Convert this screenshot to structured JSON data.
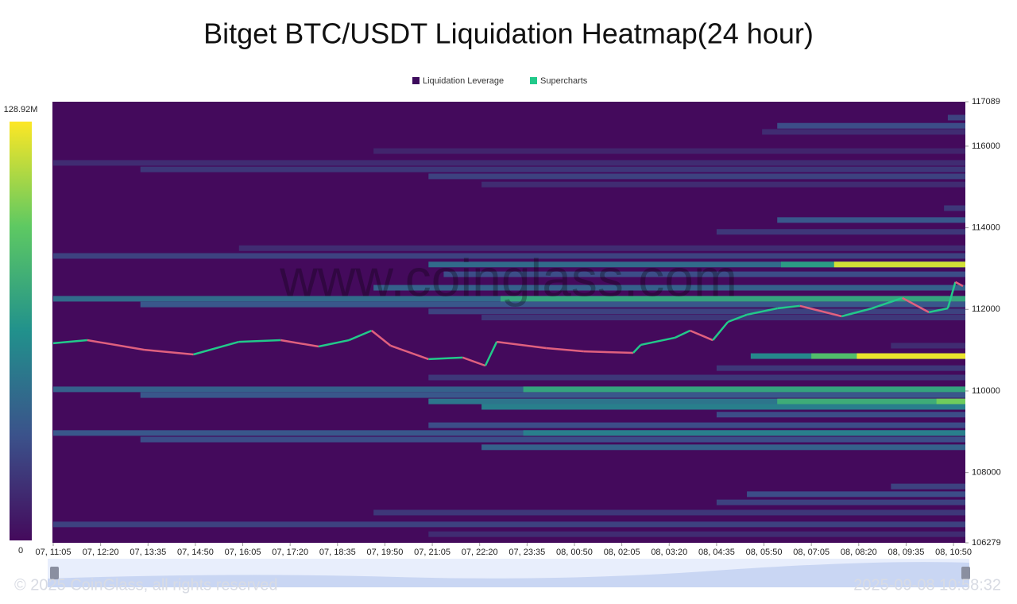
{
  "chart_data": {
    "type": "heatmap",
    "title": "Bitget BTC/USDT Liquidation Heatmap(24 hour)",
    "watermark": "www.coinglass.com",
    "copyright": "© 2025 CoinGlass, all rights reserved",
    "timestamp": "2025-09-08 10:58:32",
    "xlim": [
      0,
      24
    ],
    "xticks": [
      {
        "value": 0,
        "label": "07, 11:05"
      },
      {
        "value": 1.25,
        "label": "07, 12:20"
      },
      {
        "value": 2.5,
        "label": "07, 13:35"
      },
      {
        "value": 3.75,
        "label": "07, 14:50"
      },
      {
        "value": 5,
        "label": "07, 16:05"
      },
      {
        "value": 6.25,
        "label": "07, 17:20"
      },
      {
        "value": 7.5,
        "label": "07, 18:35"
      },
      {
        "value": 8.75,
        "label": "07, 19:50"
      },
      {
        "value": 10,
        "label": "07, 21:05"
      },
      {
        "value": 11.25,
        "label": "07, 22:20"
      },
      {
        "value": 12.5,
        "label": "07, 23:35"
      },
      {
        "value": 13.75,
        "label": "08, 00:50"
      },
      {
        "value": 15,
        "label": "08, 02:05"
      },
      {
        "value": 16.25,
        "label": "08, 03:20"
      },
      {
        "value": 17.5,
        "label": "08, 04:35"
      },
      {
        "value": 18.75,
        "label": "08, 05:50"
      },
      {
        "value": 20,
        "label": "08, 07:05"
      },
      {
        "value": 21.25,
        "label": "08, 08:20"
      },
      {
        "value": 22.5,
        "label": "08, 09:35"
      },
      {
        "value": 23.75,
        "label": "08, 10:50"
      }
    ],
    "ylim": [
      106279,
      117089
    ],
    "yticks": [
      106279,
      108000,
      110000,
      112000,
      114000,
      116000,
      117089
    ],
    "colorbar": {
      "lim": [
        0,
        128920000
      ],
      "ticks": [
        0,
        {
          "value": 128920000,
          "label": "128.92M"
        }
      ],
      "colors": [
        "#440a5c",
        "#3b528b",
        "#21918c",
        "#5ec962",
        "#fde725"
      ]
    },
    "series": [
      {
        "name": "Liquidation Leverage",
        "color": "#3d0b5c",
        "bands": [
          {
            "y": 116700,
            "x": 23.6,
            "value": 25000000
          },
          {
            "y": 116500,
            "x": 19.1,
            "value": 30000000
          },
          {
            "y": 116350,
            "x": 18.7,
            "value": 15000000
          },
          {
            "y": 115880,
            "x": 8.45,
            "value": 12000000
          },
          {
            "y": 115590,
            "x": 0,
            "value": 15000000
          },
          {
            "y": 115430,
            "x": 2.3,
            "value": 20000000
          },
          {
            "y": 115260,
            "x": 9.9,
            "value": 25000000
          },
          {
            "y": 115060,
            "x": 11.3,
            "value": 15000000
          },
          {
            "y": 114480,
            "x": 23.5,
            "value": 20000000
          },
          {
            "y": 114190,
            "x": 19.1,
            "value": 35000000
          },
          {
            "y": 113900,
            "x": 17.5,
            "value": 20000000
          },
          {
            "y": 113500,
            "x": 4.9,
            "value": 15000000
          },
          {
            "y": 113310,
            "x": 0,
            "value": 25000000
          },
          {
            "y": 113100,
            "x": 9.9,
            "value": 45000000
          },
          {
            "y": 113100,
            "x": 19.2,
            "value": 70000000
          },
          {
            "y": 113100,
            "x": 20.6,
            "value": 120000000
          },
          {
            "y": 112860,
            "x": 10.3,
            "value": 30000000
          },
          {
            "y": 112530,
            "x": 8.45,
            "value": 40000000
          },
          {
            "y": 112260,
            "x": 0,
            "value": 45000000
          },
          {
            "y": 112260,
            "x": 11.8,
            "value": 75000000
          },
          {
            "y": 112120,
            "x": 2.3,
            "value": 35000000
          },
          {
            "y": 111950,
            "x": 9.9,
            "value": 25000000
          },
          {
            "y": 111800,
            "x": 11.3,
            "value": 20000000
          },
          {
            "y": 111110,
            "x": 22.1,
            "value": 15000000
          },
          {
            "y": 110855,
            "x": 18.4,
            "value": 60000000
          },
          {
            "y": 110855,
            "x": 20,
            "value": 90000000
          },
          {
            "y": 110855,
            "x": 21.2,
            "value": 125000000
          },
          {
            "y": 110560,
            "x": 17.5,
            "value": 20000000
          },
          {
            "y": 110330,
            "x": 9.9,
            "value": 20000000
          },
          {
            "y": 110040,
            "x": 0,
            "value": 40000000
          },
          {
            "y": 110040,
            "x": 12.4,
            "value": 75000000
          },
          {
            "y": 109900,
            "x": 2.3,
            "value": 35000000
          },
          {
            "y": 109745,
            "x": 9.9,
            "value": 50000000
          },
          {
            "y": 109745,
            "x": 19.1,
            "value": 80000000
          },
          {
            "y": 109745,
            "x": 23.3,
            "value": 100000000
          },
          {
            "y": 109610,
            "x": 11.3,
            "value": 55000000
          },
          {
            "y": 109420,
            "x": 17.5,
            "value": 30000000
          },
          {
            "y": 109160,
            "x": 9.9,
            "value": 30000000
          },
          {
            "y": 108970,
            "x": 0,
            "value": 35000000
          },
          {
            "y": 108970,
            "x": 12.4,
            "value": 55000000
          },
          {
            "y": 108810,
            "x": 2.3,
            "value": 30000000
          },
          {
            "y": 108620,
            "x": 11.3,
            "value": 40000000
          },
          {
            "y": 107660,
            "x": 22.1,
            "value": 25000000
          },
          {
            "y": 107470,
            "x": 18.3,
            "value": 30000000
          },
          {
            "y": 107270,
            "x": 17.5,
            "value": 25000000
          },
          {
            "y": 107020,
            "x": 8.45,
            "value": 20000000
          },
          {
            "y": 106730,
            "x": 0,
            "value": 25000000
          },
          {
            "y": 106490,
            "x": 9.9,
            "value": 15000000
          }
        ]
      },
      {
        "name": "Supercharts",
        "color": "#22c98a",
        "down_color": "#e0607e",
        "x": [
          0,
          0.9,
          2.4,
          3.7,
          4.9,
          6.0,
          7.0,
          7.8,
          8.4,
          8.9,
          9.9,
          10.8,
          11.4,
          11.7,
          13.0,
          14.0,
          15.3,
          15.5,
          16.4,
          16.8,
          17.4,
          17.8,
          18.3,
          19.1,
          19.7,
          20.8,
          21.6,
          22.4,
          23.1,
          23.6,
          23.8,
          24.0
        ],
        "values": [
          111170,
          111245,
          111010,
          110895,
          111205,
          111245,
          111090,
          111245,
          111480,
          111110,
          110780,
          110820,
          110620,
          111205,
          111050,
          110970,
          110935,
          111130,
          111305,
          111480,
          111245,
          111694,
          111870,
          112025,
          112085,
          111830,
          112025,
          112280,
          111930,
          112025,
          112670,
          112570
        ]
      }
    ]
  }
}
